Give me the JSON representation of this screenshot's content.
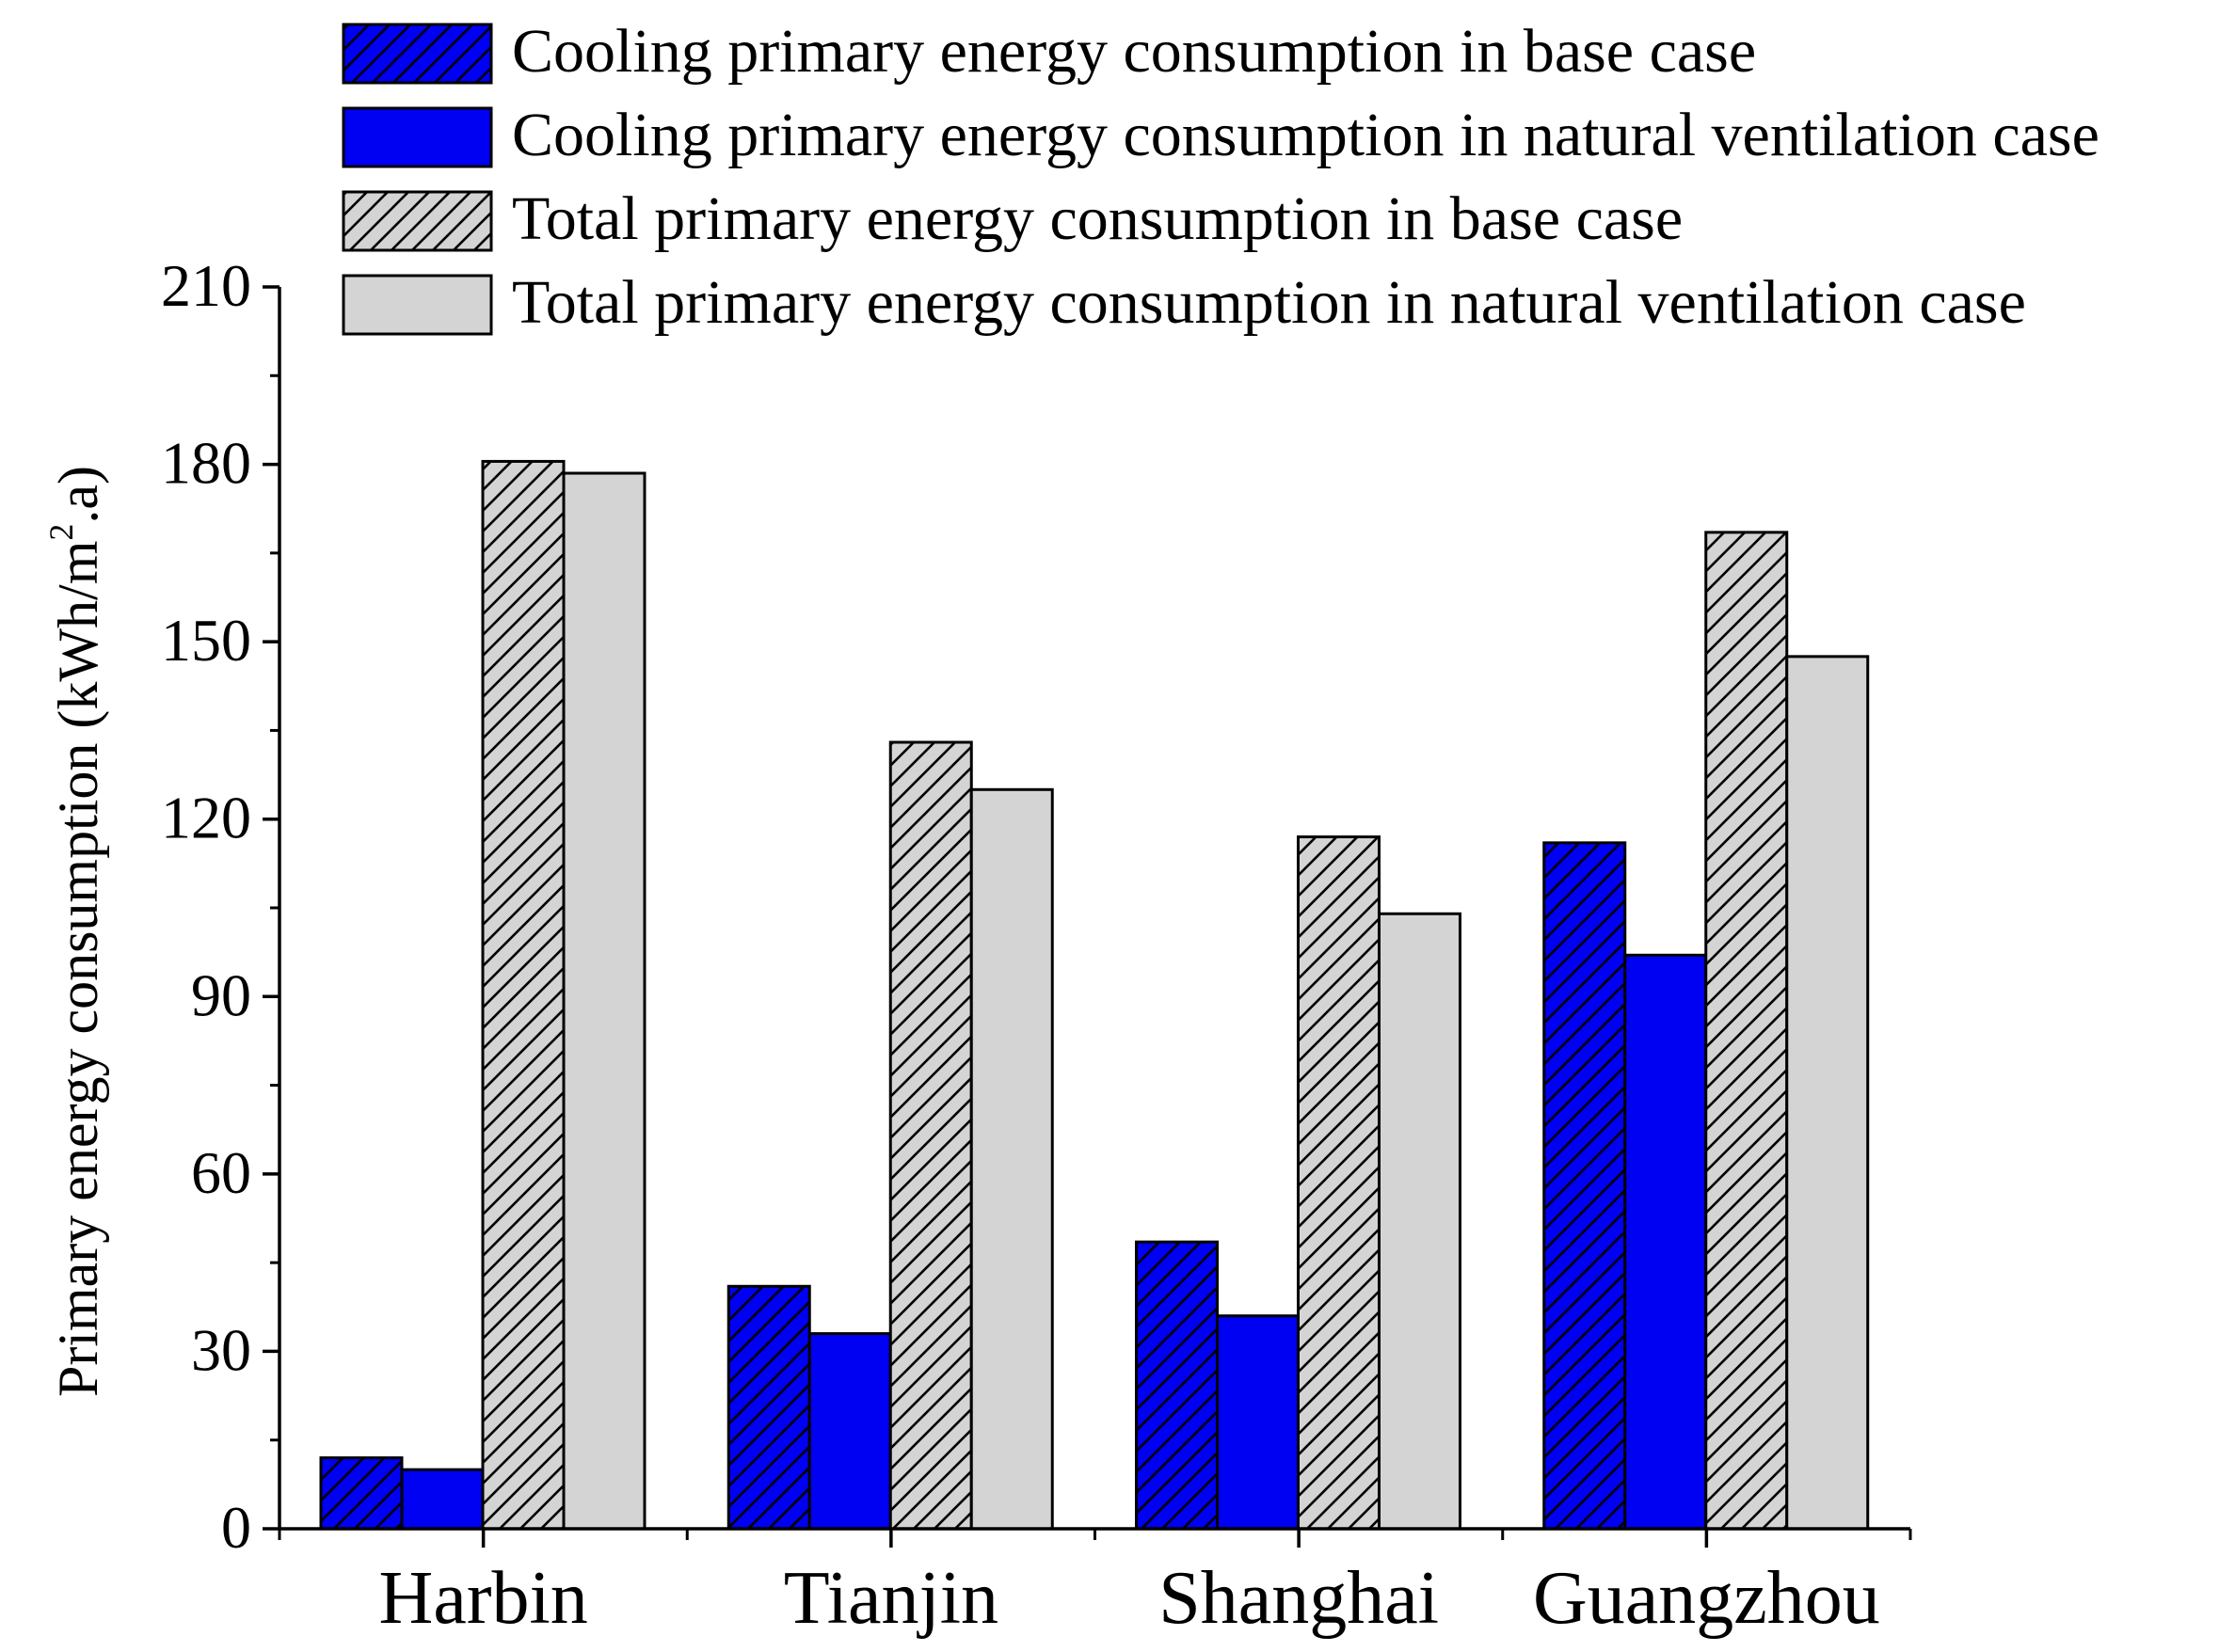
{
  "chart_data": {
    "type": "bar",
    "title": "",
    "xlabel": "",
    "ylabel": "Primary energy consumption (kWh/m².a)",
    "ylabel_parts": {
      "prefix": "Primary energy consumption (kWh/m",
      "superscript": "2",
      "suffix": ".a)"
    },
    "categories": [
      "Harbin",
      "Tianjin",
      "Shanghai",
      "Guangzhou"
    ],
    "ylim": [
      0,
      210
    ],
    "yticks": [
      "0",
      "30",
      "60",
      "90",
      "120",
      "150",
      "180",
      "210"
    ],
    "ytick_values": [
      0,
      30,
      60,
      90,
      120,
      150,
      180,
      210
    ],
    "grid": false,
    "legend_position": "top",
    "series": [
      {
        "name": "Cooling primary energy consumption in base case",
        "values": [
          12,
          41,
          48.5,
          116
        ],
        "color": "#0000f2",
        "hatch": true
      },
      {
        "name": "Cooling primary energy consumption in natural ventilation case",
        "values": [
          10,
          33,
          36,
          97
        ],
        "color": "#0000f2",
        "hatch": false
      },
      {
        "name": "Total primary energy consumption in base case",
        "values": [
          180.5,
          133,
          117,
          168.5
        ],
        "color": "#d4d4d4",
        "hatch": true
      },
      {
        "name": "Total primary energy consumption in natural ventilation case",
        "values": [
          178.5,
          125,
          104,
          147.5
        ],
        "color": "#d4d4d4",
        "hatch": false
      }
    ]
  }
}
